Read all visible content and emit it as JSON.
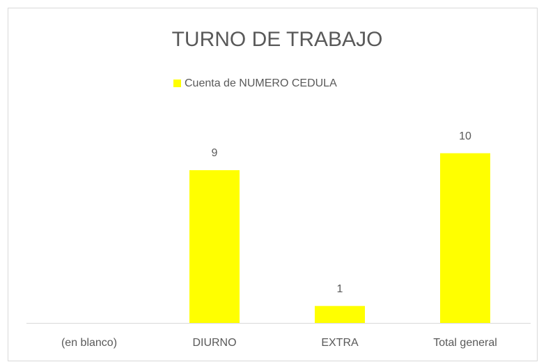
{
  "chart_data": {
    "type": "bar",
    "title": "TURNO DE TRABAJO",
    "categories": [
      "(en blanco)",
      "DIURNO",
      "EXTRA",
      "Total general"
    ],
    "series": [
      {
        "name": "Cuenta de NUMERO CEDULA",
        "color": "#ffff00",
        "values": [
          null,
          9,
          1,
          10
        ]
      }
    ],
    "ylim": [
      0,
      12
    ]
  }
}
